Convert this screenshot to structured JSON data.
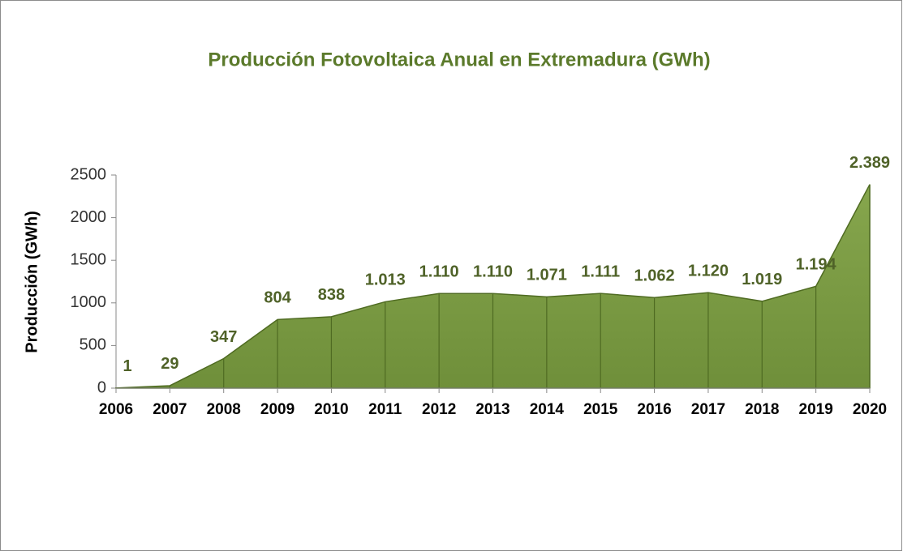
{
  "chart_data": {
    "type": "area",
    "title": "Producción Fotovoltaica Anual en Extremadura (GWh)",
    "y_label": "Producción (GWh)",
    "categories": [
      "2006",
      "2007",
      "2008",
      "2009",
      "2010",
      "2011",
      "2012",
      "2013",
      "2014",
      "2015",
      "2016",
      "2017",
      "2018",
      "2019",
      "2020"
    ],
    "values": [
      1,
      29,
      347,
      804,
      838,
      1013,
      1110,
      1110,
      1071,
      1111,
      1062,
      1120,
      1019,
      1194,
      2389
    ],
    "value_labels": [
      "1",
      "29",
      "347",
      "804",
      "838",
      "1.013",
      "1.110",
      "1.110",
      "1.071",
      "1.111",
      "1.062",
      "1.120",
      "1.019",
      "1.194",
      "2.389"
    ],
    "color": "#7f9f48",
    "ylim": [
      0,
      2500
    ],
    "yticks": [
      0,
      500,
      1000,
      1500,
      2000,
      2500
    ]
  }
}
